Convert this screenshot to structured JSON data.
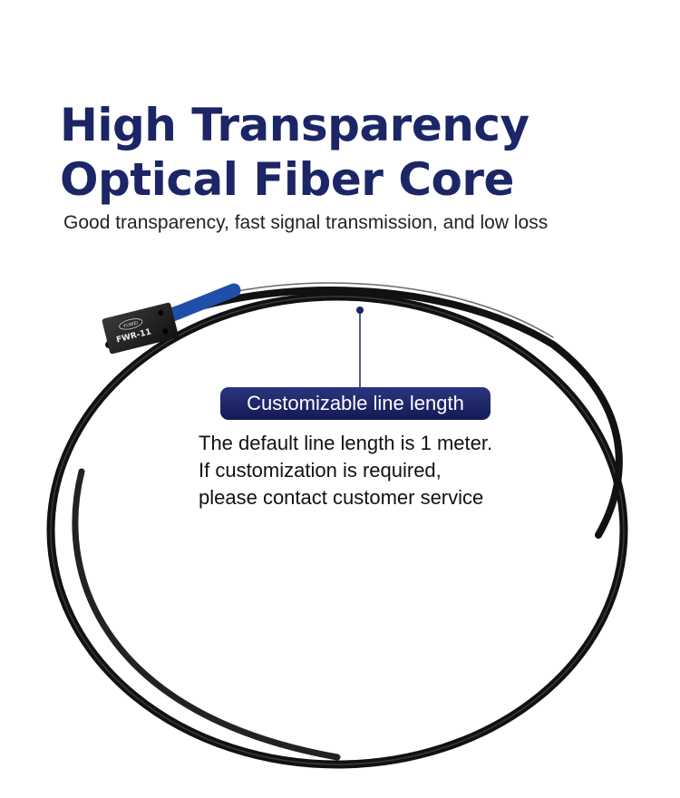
{
  "headline": {
    "line1": "High Transparency",
    "line2": "Optical Fiber Core"
  },
  "subtitle": "Good transparency, fast signal transmission, and low loss",
  "product": {
    "brand": "FUWEI",
    "model": "FWR-11"
  },
  "callout": {
    "label": "Customizable line length",
    "lines": [
      "The default line length is 1 meter.",
      "If customization is required,",
      "please contact customer service"
    ]
  },
  "colors": {
    "title": "#1c2566",
    "badge": "#1c2566",
    "sleeve": "#1f4fa8",
    "cable": "#111111"
  }
}
